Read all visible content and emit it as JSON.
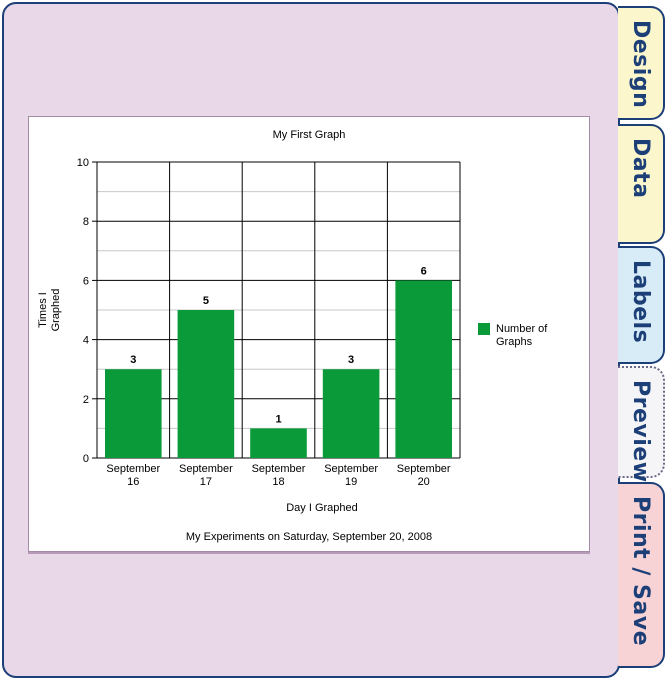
{
  "tabs": [
    {
      "label": "Design",
      "color": "#fbf6cc"
    },
    {
      "label": "Data",
      "color": "#fbf6cc"
    },
    {
      "label": "Labels",
      "color": "#d7ecf6"
    },
    {
      "label": "Preview",
      "color": "#f5f5f7"
    },
    {
      "label": "Print / Save",
      "color": "#f8d3d6"
    }
  ],
  "active_tab": "Preview",
  "colors": {
    "panel": "#e8d8e8",
    "accent": "#1c3f78",
    "bar": "#0a9a3a"
  },
  "chart_data": {
    "type": "bar",
    "title": "My First Graph",
    "xlabel": "Day I Graphed",
    "ylabel": "Times I Graphed",
    "caption": "My Experiments on Saturday, September 20, 2008",
    "categories": [
      "September 16",
      "September 17",
      "September 18",
      "September 19",
      "September 20"
    ],
    "series": [
      {
        "name": "Number of Graphs",
        "values": [
          3,
          5,
          1,
          3,
          6
        ],
        "color": "#0a9a3a"
      }
    ],
    "ylim": [
      0,
      10
    ],
    "yticks": [
      0,
      2,
      4,
      6,
      8,
      10
    ],
    "grid": true,
    "legend": "right"
  }
}
